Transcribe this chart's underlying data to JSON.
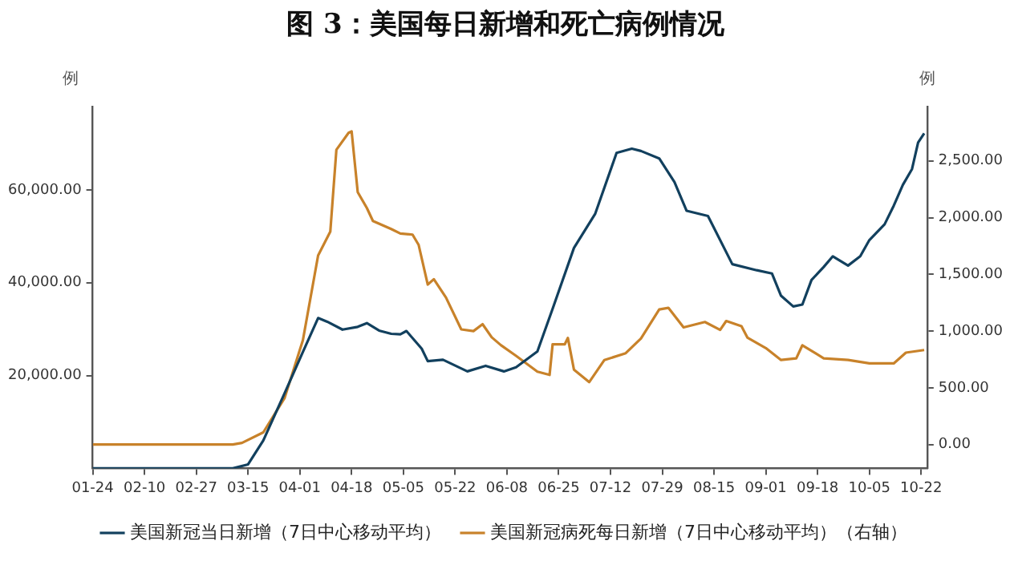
{
  "chart_data": {
    "type": "line",
    "title": "图 3：美国每日新增和死亡病例情况",
    "ylabel": "例",
    "y2label": "例",
    "xlim": [
      "--01-24",
      "--10-24"
    ],
    "xticks": [
      {
        "value": "--01-24",
        "label": "01-24"
      },
      {
        "value": "--02-10",
        "label": "02-10"
      },
      {
        "value": "--02-27",
        "label": "02-27"
      },
      {
        "value": "--03-15",
        "label": "03-15"
      },
      {
        "value": "--04-01",
        "label": "04-01"
      },
      {
        "value": "--04-18",
        "label": "04-18"
      },
      {
        "value": "--05-05",
        "label": "05-05"
      },
      {
        "value": "--05-22",
        "label": "05-22"
      },
      {
        "value": "--06-08",
        "label": "06-08"
      },
      {
        "value": "--06-25",
        "label": "06-25"
      },
      {
        "value": "--07-12",
        "label": "07-12"
      },
      {
        "value": "--07-29",
        "label": "07-29"
      },
      {
        "value": "--08-15",
        "label": "08-15"
      },
      {
        "value": "--09-01",
        "label": "09-01"
      },
      {
        "value": "--09-18",
        "label": "09-18"
      },
      {
        "value": "--10-05",
        "label": "10-05"
      },
      {
        "value": "--10-22",
        "label": "10-22"
      }
    ],
    "ylim": [
      0,
      78000
    ],
    "yticks": [
      {
        "value": 20000,
        "label": "20,000.00"
      },
      {
        "value": 40000,
        "label": "40,000.00"
      },
      {
        "value": 60000,
        "label": "60,000.00"
      }
    ],
    "y2lim": [
      -210,
      2980
    ],
    "y2ticks": [
      {
        "value": 0,
        "label": "0.00"
      },
      {
        "value": 500,
        "label": "500.00"
      },
      {
        "value": 1000,
        "label": "1,000.00"
      },
      {
        "value": 1500,
        "label": "1,500.00"
      },
      {
        "value": 2000,
        "label": "2,000.00"
      },
      {
        "value": 2500,
        "label": "2,500.00"
      }
    ],
    "grid": false,
    "legend": "bottom",
    "marker": "none",
    "line_style": "solid",
    "series": [
      {
        "name": "美国新冠当日新增（7日中心移动平均）",
        "color": "#12405e",
        "x": [
          "--01-24",
          "--03-10",
          "--03-15",
          "--03-20",
          "--03-27",
          "--04-02",
          "--04-07",
          "--04-10",
          "--04-15",
          "--04-20",
          "--04-23",
          "--04-27",
          "--05-01",
          "--05-04",
          "--05-06",
          "--05-11",
          "--05-13",
          "--05-18",
          "--05-26",
          "--06-01",
          "--06-07",
          "--06-11",
          "--06-18",
          "--06-23",
          "--06-30",
          "--07-07",
          "--07-14",
          "--07-19",
          "--07-22",
          "--07-28",
          "--08-02",
          "--08-06",
          "--08-13",
          "--08-21",
          "--08-29",
          "--09-03",
          "--09-06",
          "--09-10",
          "--09-13",
          "--09-16",
          "--09-20",
          "--09-23",
          "--09-28",
          "--10-02",
          "--10-05",
          "--10-10",
          "--10-13",
          "--10-16",
          "--10-19",
          "--10-21",
          "--10-23"
        ],
        "values": [
          0,
          0,
          850,
          6000,
          16200,
          25100,
          32400,
          31600,
          29900,
          30500,
          31300,
          29700,
          29000,
          28900,
          29600,
          25800,
          23100,
          23400,
          20900,
          22100,
          20900,
          21800,
          25200,
          34400,
          47500,
          54900,
          68000,
          68900,
          68400,
          66800,
          61700,
          55500,
          54400,
          44000,
          42700,
          42000,
          37200,
          34900,
          35300,
          40600,
          43400,
          45700,
          43700,
          45700,
          49200,
          52600,
          56600,
          61100,
          64500,
          70200,
          72200
        ]
      },
      {
        "name": "美国新冠病死每日新增（7日中心移动平均）（右轴）",
        "color": "#c8822a",
        "axis": "y2",
        "x": [
          "--01-24",
          "--03-10",
          "--03-13",
          "--03-20",
          "--03-27",
          "--04-02",
          "--04-07",
          "--04-11",
          "--04-13",
          "--04-17",
          "--04-18",
          "--04-20",
          "--04-23",
          "--04-25",
          "--05-01",
          "--05-04",
          "--05-08",
          "--05-10",
          "--05-13",
          "--05-15",
          "--05-19",
          "--05-24",
          "--05-28",
          "--05-31",
          "--06-03",
          "--06-06",
          "--06-11",
          "--06-18",
          "--06-22",
          "--06-23",
          "--06-27",
          "--06-28",
          "--06-30",
          "--07-05",
          "--07-10",
          "--07-17",
          "--07-22",
          "--07-28",
          "--07-31",
          "--08-05",
          "--08-12",
          "--08-17",
          "--08-19",
          "--08-24",
          "--08-26",
          "--09-01",
          "--09-06",
          "--09-11",
          "--09-13",
          "--09-20",
          "--09-28",
          "--10-05",
          "--10-13",
          "--10-17",
          "--10-23"
        ],
        "values": [
          0,
          0,
          14,
          107,
          410,
          920,
          1666,
          1876,
          2598,
          2747,
          2760,
          2225,
          2085,
          1970,
          1900,
          1860,
          1850,
          1760,
          1410,
          1457,
          1295,
          1015,
          1000,
          1061,
          945,
          876,
          782,
          642,
          614,
          884,
          884,
          940,
          660,
          550,
          745,
          805,
          935,
          1191,
          1205,
          1033,
          1080,
          1010,
          1089,
          1043,
          941,
          850,
          745,
          760,
          875,
          760,
          745,
          715,
          715,
          810,
          833
        ]
      }
    ]
  }
}
